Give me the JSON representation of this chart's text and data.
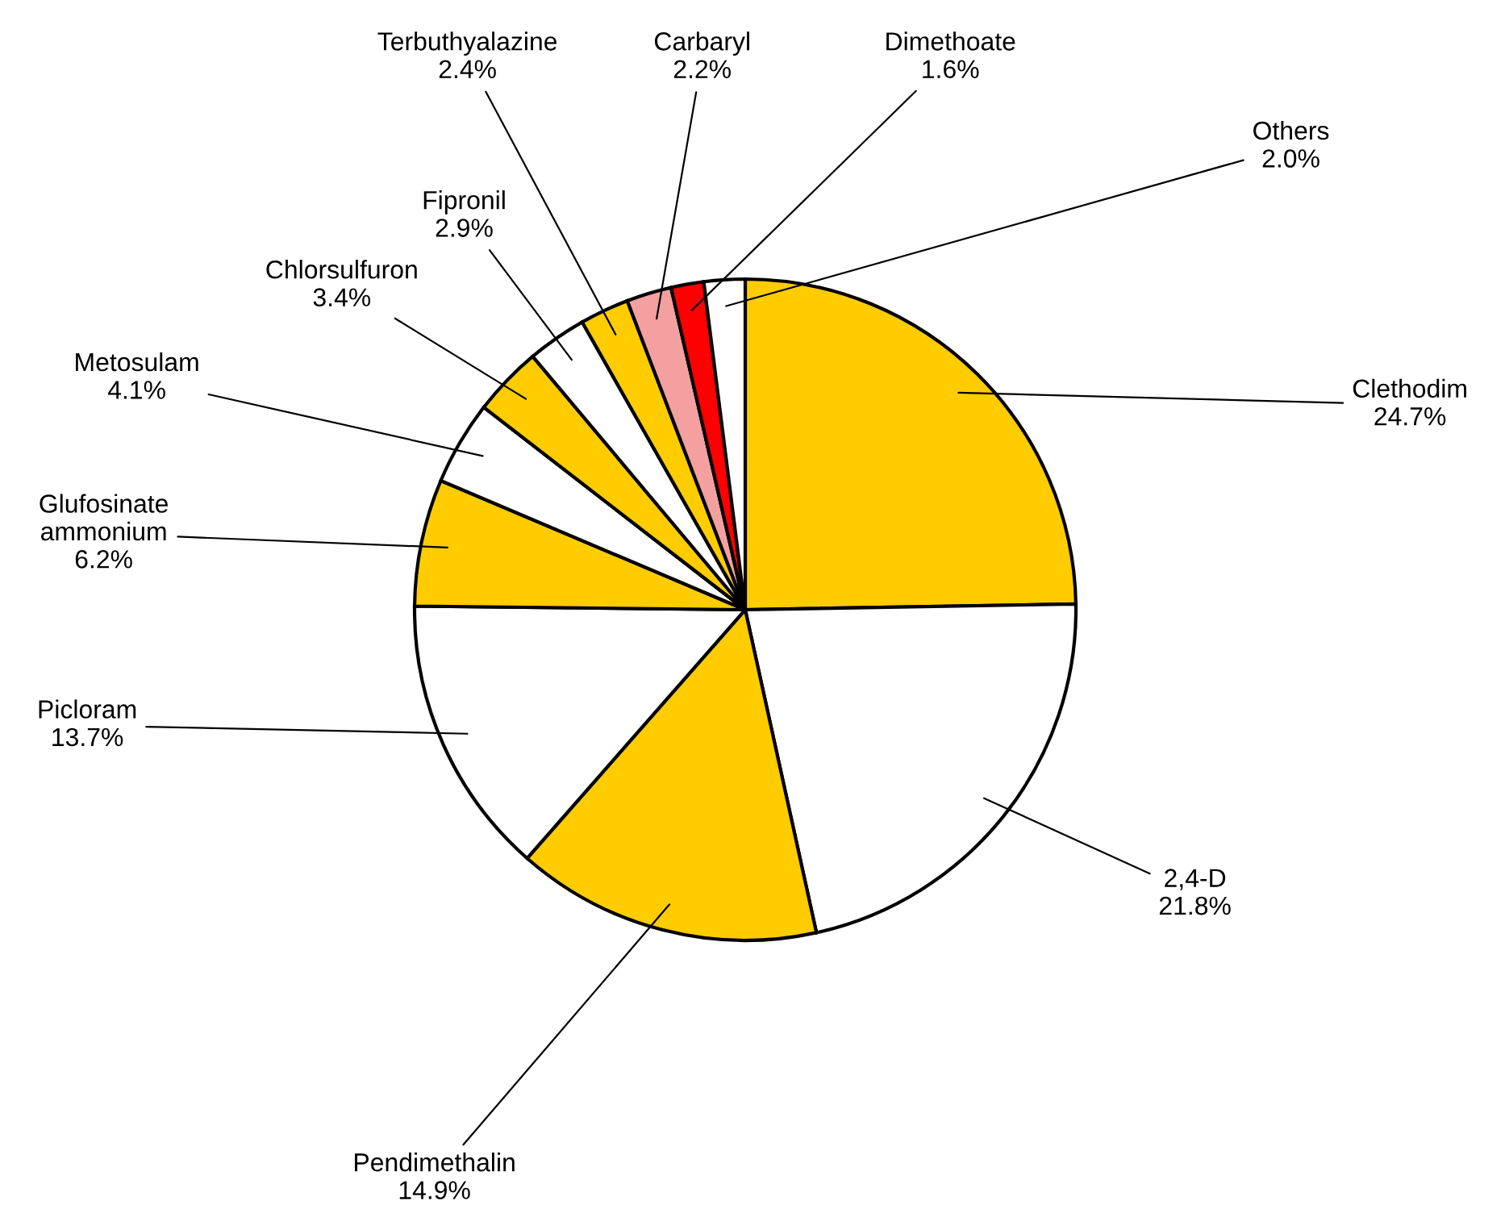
{
  "chart_data": {
    "type": "pie",
    "categories": [
      "Clethodim",
      "2,4-D",
      "Pendimethalin",
      "Picloram",
      "Glufosinate\nammonium",
      "Metosulam",
      "Chlorsulfuron",
      "Fipronil",
      "Terbuthyalazine",
      "Carbaryl",
      "Dimethoate",
      "Others"
    ],
    "values": [
      24.7,
      21.8,
      14.9,
      13.7,
      6.2,
      4.1,
      3.4,
      2.9,
      2.4,
      2.2,
      1.6,
      2.0
    ],
    "value_labels": [
      "24.7%",
      "21.8%",
      "14.9%",
      "13.7%",
      "6.2%",
      "4.1%",
      "3.4%",
      "2.9%",
      "2.4%",
      "2.2%",
      "1.6%",
      "2.0%"
    ],
    "colors": [
      "#ffcc00",
      "#ffffff",
      "#ffcc00",
      "#ffffff",
      "#ffcc00",
      "#ffffff",
      "#ffcc00",
      "#ffffff",
      "#ffcc00",
      "#f4a0a0",
      "#ff0000",
      "#ffffff"
    ],
    "legend": false
  }
}
